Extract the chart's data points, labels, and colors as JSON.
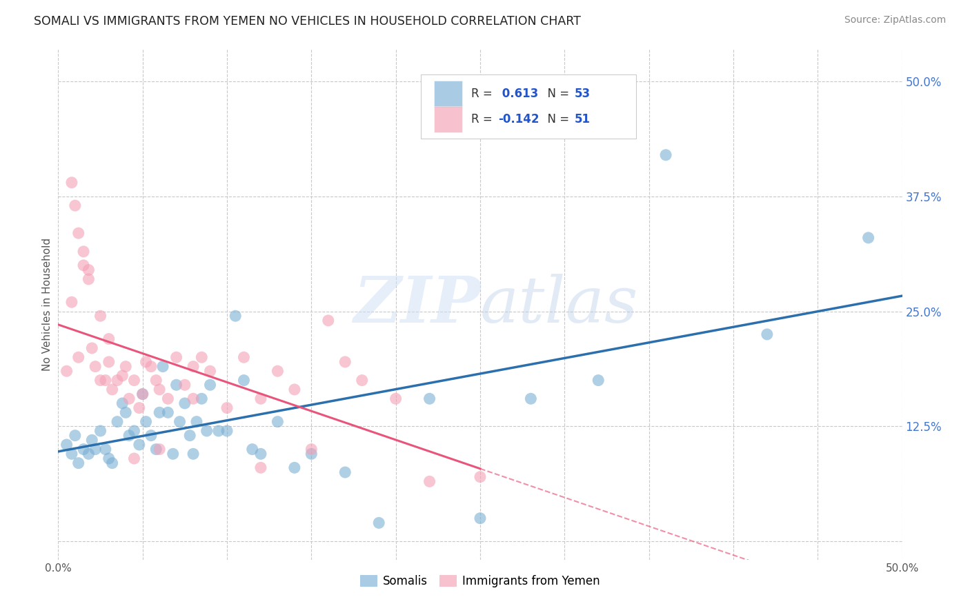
{
  "title": "SOMALI VS IMMIGRANTS FROM YEMEN NO VEHICLES IN HOUSEHOLD CORRELATION CHART",
  "source": "Source: ZipAtlas.com",
  "ylabel": "No Vehicles in Household",
  "xlim": [
    0.0,
    0.5
  ],
  "ylim": [
    -0.02,
    0.535
  ],
  "yticks": [
    0.0,
    0.125,
    0.25,
    0.375,
    0.5
  ],
  "ytick_labels": [
    "",
    "12.5%",
    "25.0%",
    "37.5%",
    "50.0%"
  ],
  "background_color": "#ffffff",
  "grid_color": "#c8c8c8",
  "somali_color": "#7bafd4",
  "yemen_color": "#f4a0b5",
  "somali_line_color": "#2c6fad",
  "yemen_line_color": "#e8547a",
  "somali_R": 0.613,
  "somali_N": 53,
  "yemen_R": -0.142,
  "yemen_N": 51,
  "watermark_zip": "ZIP",
  "watermark_atlas": "atlas",
  "somali_points_x": [
    0.005,
    0.008,
    0.01,
    0.012,
    0.015,
    0.018,
    0.02,
    0.022,
    0.025,
    0.028,
    0.03,
    0.032,
    0.035,
    0.038,
    0.04,
    0.042,
    0.045,
    0.048,
    0.05,
    0.052,
    0.055,
    0.058,
    0.06,
    0.062,
    0.065,
    0.068,
    0.07,
    0.072,
    0.075,
    0.078,
    0.08,
    0.082,
    0.085,
    0.088,
    0.09,
    0.095,
    0.1,
    0.105,
    0.11,
    0.115,
    0.12,
    0.13,
    0.14,
    0.15,
    0.17,
    0.19,
    0.22,
    0.25,
    0.28,
    0.32,
    0.36,
    0.42,
    0.48
  ],
  "somali_points_y": [
    0.105,
    0.095,
    0.115,
    0.085,
    0.1,
    0.095,
    0.11,
    0.1,
    0.12,
    0.1,
    0.09,
    0.085,
    0.13,
    0.15,
    0.14,
    0.115,
    0.12,
    0.105,
    0.16,
    0.13,
    0.115,
    0.1,
    0.14,
    0.19,
    0.14,
    0.095,
    0.17,
    0.13,
    0.15,
    0.115,
    0.095,
    0.13,
    0.155,
    0.12,
    0.17,
    0.12,
    0.12,
    0.245,
    0.175,
    0.1,
    0.095,
    0.13,
    0.08,
    0.095,
    0.075,
    0.02,
    0.155,
    0.025,
    0.155,
    0.175,
    0.42,
    0.225,
    0.33
  ],
  "yemen_points_x": [
    0.005,
    0.008,
    0.008,
    0.01,
    0.012,
    0.012,
    0.015,
    0.015,
    0.018,
    0.018,
    0.02,
    0.022,
    0.025,
    0.028,
    0.03,
    0.032,
    0.035,
    0.038,
    0.04,
    0.042,
    0.045,
    0.048,
    0.05,
    0.052,
    0.055,
    0.058,
    0.06,
    0.065,
    0.07,
    0.075,
    0.08,
    0.085,
    0.09,
    0.1,
    0.11,
    0.12,
    0.13,
    0.14,
    0.15,
    0.16,
    0.17,
    0.18,
    0.2,
    0.22,
    0.25,
    0.025,
    0.03,
    0.045,
    0.06,
    0.08,
    0.12
  ],
  "yemen_points_y": [
    0.185,
    0.39,
    0.26,
    0.365,
    0.335,
    0.2,
    0.315,
    0.3,
    0.295,
    0.285,
    0.21,
    0.19,
    0.245,
    0.175,
    0.22,
    0.165,
    0.175,
    0.18,
    0.19,
    0.155,
    0.09,
    0.145,
    0.16,
    0.195,
    0.19,
    0.175,
    0.1,
    0.155,
    0.2,
    0.17,
    0.155,
    0.2,
    0.185,
    0.145,
    0.2,
    0.08,
    0.185,
    0.165,
    0.1,
    0.24,
    0.195,
    0.175,
    0.155,
    0.065,
    0.07,
    0.175,
    0.195,
    0.175,
    0.165,
    0.19,
    0.155
  ],
  "legend_R_color": "#333333",
  "legend_val_color": "#2255cc",
  "legend_N_color": "#333333",
  "legend_Nval_color": "#2255cc"
}
